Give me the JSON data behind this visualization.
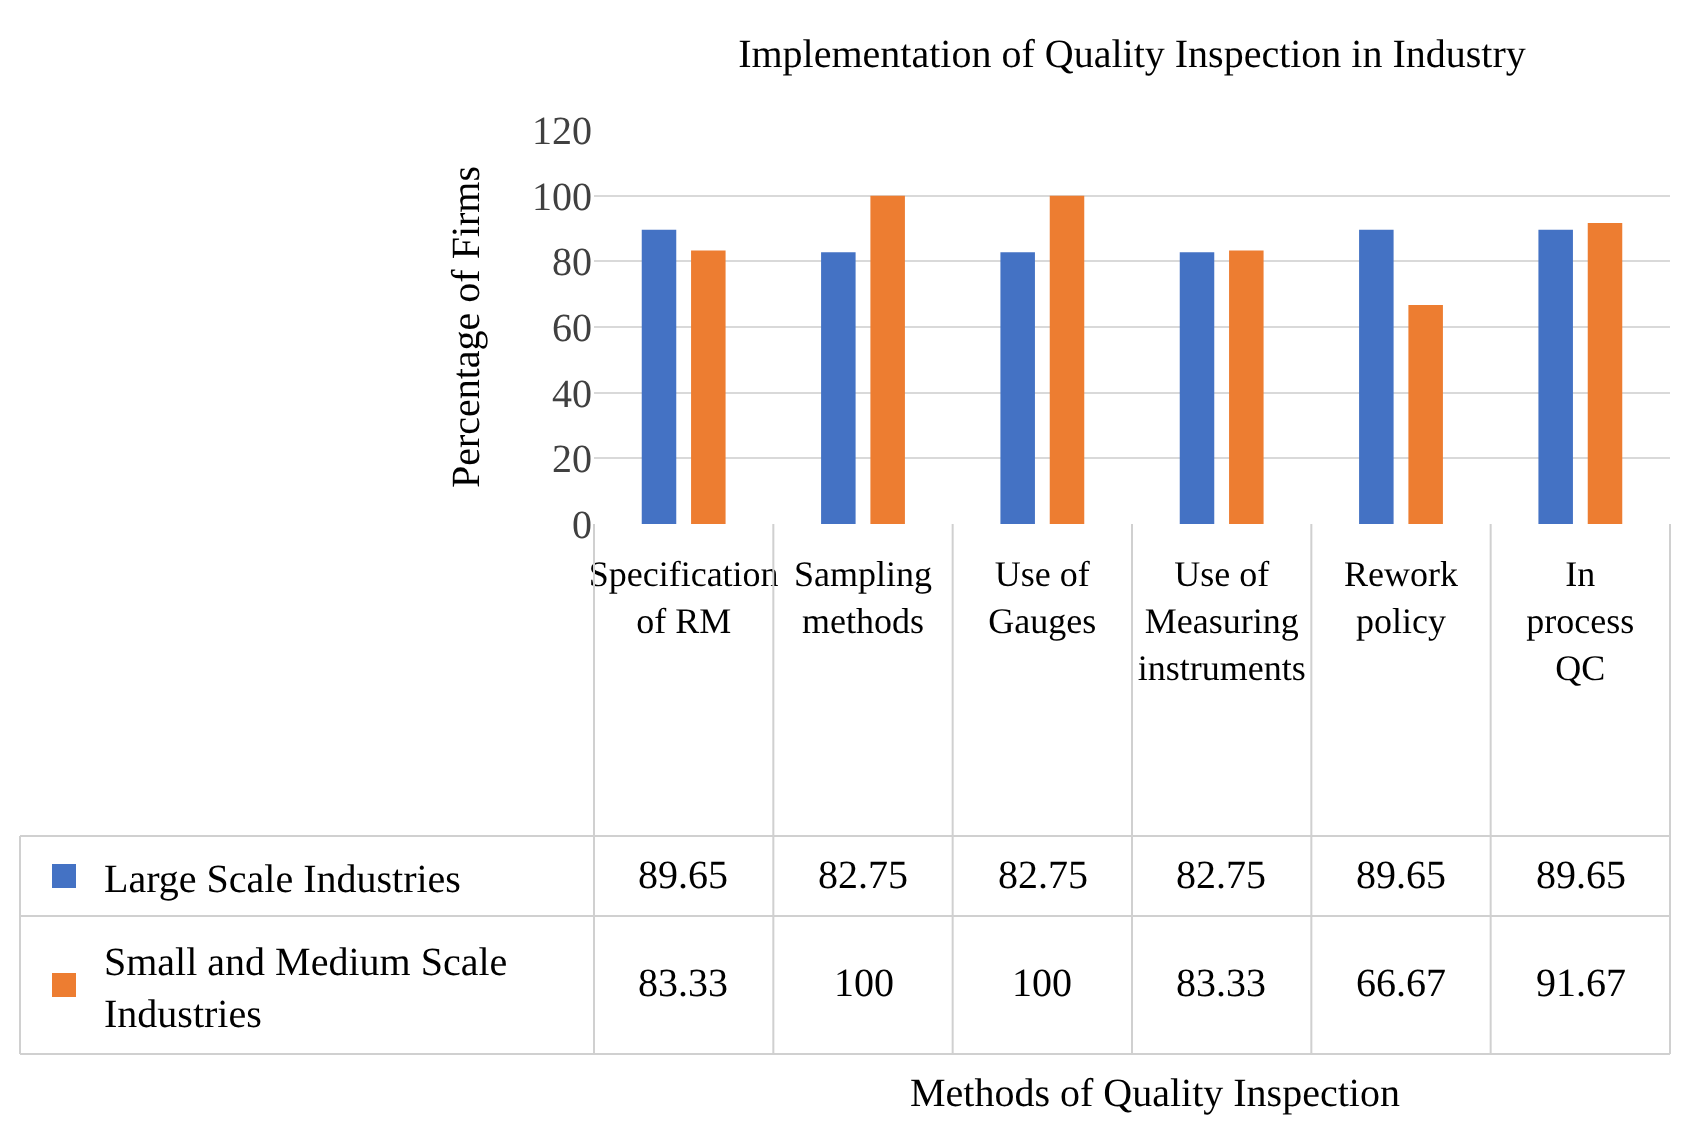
{
  "chart_data": {
    "type": "bar",
    "title": "Implementation of Quality Inspection in Industry",
    "annotations": [
      "Methods of Quality Inspection"
    ],
    "ylabel": "Percentage of Firms",
    "categories": [
      "Specification of RM",
      "Sampling methods",
      "Use of Gauges",
      "Use of Measuring instruments",
      "Rework policy",
      "In process QC"
    ],
    "series": [
      {
        "name": "Large Scale Industries",
        "color": "#4472c4",
        "values": [
          89.65,
          82.75,
          82.75,
          82.75,
          89.65,
          89.65
        ]
      },
      {
        "name": "Small and Medium Scale Industries",
        "color": "#ed7d31",
        "values": [
          83.33,
          100,
          100,
          83.33,
          66.67,
          91.67
        ]
      }
    ],
    "ylim": [
      0,
      120
    ],
    "yticks": [
      0,
      20,
      40,
      60,
      80,
      100,
      120
    ],
    "grid": "y",
    "data_labels": true,
    "legend": "bottom left"
  }
}
